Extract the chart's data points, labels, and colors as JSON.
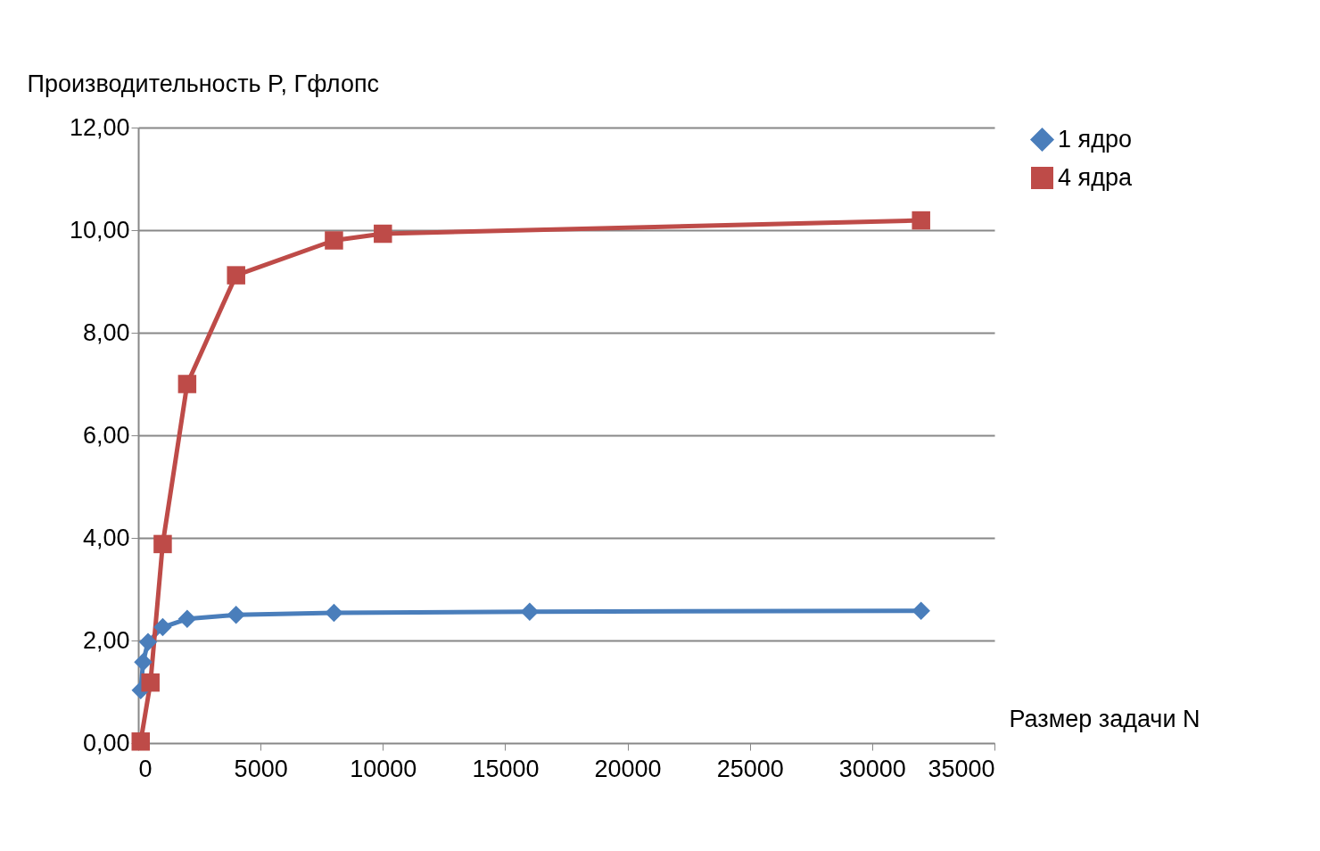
{
  "chart_data": {
    "type": "line",
    "ylabel": "Производительность P, Гфлопс",
    "xlabel": "Размер задачи N",
    "series": [
      {
        "name": "1 ядро",
        "color": "#4a7ebb",
        "marker": "diamond",
        "x": [
          100,
          200,
          400,
          1000,
          2000,
          4000,
          8000,
          16000,
          32000
        ],
        "values": [
          1.03,
          1.58,
          1.97,
          2.26,
          2.42,
          2.5,
          2.54,
          2.56,
          2.58
        ]
      },
      {
        "name": "4 ядра",
        "color": "#be4b48",
        "marker": "square",
        "x": [
          100,
          500,
          1000,
          2000,
          4000,
          8000,
          10000,
          32000
        ],
        "values": [
          0.03,
          1.18,
          3.88,
          7.0,
          9.12,
          9.8,
          9.93,
          10.19
        ]
      }
    ],
    "xlim": [
      0,
      35000
    ],
    "xticks": [
      0,
      5000,
      10000,
      15000,
      20000,
      25000,
      30000,
      35000
    ],
    "ylim": [
      0,
      12
    ],
    "yticks": [
      {
        "value": 0,
        "label": "0,00"
      },
      {
        "value": 2,
        "label": "2,00"
      },
      {
        "value": 4,
        "label": "4,00"
      },
      {
        "value": 6,
        "label": "6,00"
      },
      {
        "value": 8,
        "label": "8,00"
      },
      {
        "value": 10,
        "label": "10,00"
      },
      {
        "value": 12,
        "label": "12,00"
      }
    ],
    "grid": "y",
    "legend": "right",
    "line_style": "solid"
  }
}
